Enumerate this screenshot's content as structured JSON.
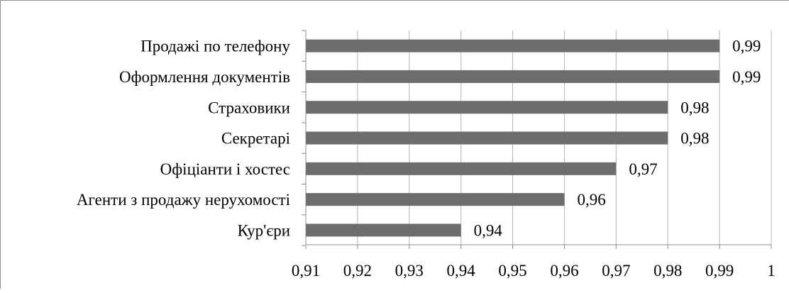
{
  "chart_data": {
    "type": "bar",
    "orientation": "horizontal",
    "categories": [
      "Продажі по телефону",
      "Оформлення документів",
      "Страховики",
      "Секретарі",
      "Офіціанти і хостес",
      "Агенти з продажу нерухомості",
      "Кур'єри"
    ],
    "values": [
      0.99,
      0.99,
      0.98,
      0.98,
      0.97,
      0.96,
      0.94
    ],
    "value_labels": [
      "0,99",
      "0,99",
      "0,98",
      "0,98",
      "0,97",
      "0,96",
      "0,94"
    ],
    "xlim": [
      0.91,
      1
    ],
    "x_ticks": [
      {
        "value": 0.91,
        "label": "0,91"
      },
      {
        "value": 0.92,
        "label": "0,92"
      },
      {
        "value": 0.93,
        "label": "0,93"
      },
      {
        "value": 0.94,
        "label": "0,94"
      },
      {
        "value": 0.95,
        "label": "0,95"
      },
      {
        "value": 0.96,
        "label": "0,96"
      },
      {
        "value": 0.97,
        "label": "0,97"
      },
      {
        "value": 0.98,
        "label": "0,98"
      },
      {
        "value": 0.99,
        "label": "0,99"
      },
      {
        "value": 1,
        "label": "1"
      }
    ],
    "title": "",
    "xlabel": "",
    "ylabel": "",
    "grid": "vertical",
    "legend": "none",
    "bar_color": "#6d6d6d",
    "grid_color": "#b5b5b5",
    "axis_color": "#8c8c8c"
  }
}
